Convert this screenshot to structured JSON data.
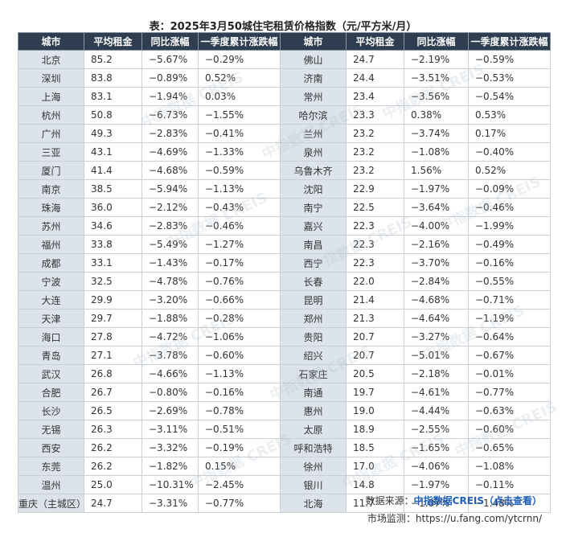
{
  "title": "表：2025年3月50城住宅租赁价格指数（元/平方米/月）",
  "headers": [
    "城市",
    "平均租金",
    "同比涨幅",
    "一季度累计涨跌幅",
    "城市",
    "平均租金",
    "同比涨幅",
    "一季度累计涨跌幅"
  ],
  "rows": [
    [
      [
        "北京",
        "85.2",
        "−5.67%",
        "−0.29%"
      ],
      [
        "佛山",
        "24.7",
        "−2.19%",
        "−0.59%"
      ]
    ],
    [
      [
        "深圳",
        "83.8",
        "−0.89%",
        "0.52%"
      ],
      [
        "济南",
        "24.4",
        "−3.51%",
        "−0.53%"
      ]
    ],
    [
      [
        "上海",
        "83.1",
        "−1.94%",
        "0.03%"
      ],
      [
        "常州",
        "23.4",
        "−3.56%",
        "−0.54%"
      ]
    ],
    [
      [
        "杭州",
        "50.8",
        "−6.73%",
        "−1.55%"
      ],
      [
        "哈尔滨",
        "23.3",
        "0.38%",
        "0.53%"
      ]
    ],
    [
      [
        "广州",
        "49.3",
        "−2.83%",
        "−0.41%"
      ],
      [
        "兰州",
        "23.2",
        "−3.74%",
        "0.17%"
      ]
    ],
    [
      [
        "三亚",
        "43.1",
        "−4.69%",
        "−1.33%"
      ],
      [
        "泉州",
        "23.2",
        "−1.08%",
        "−0.40%"
      ]
    ],
    [
      [
        "厦门",
        "41.4",
        "−4.68%",
        "−0.59%"
      ],
      [
        "乌鲁木齐",
        "23.2",
        "1.56%",
        "0.52%"
      ]
    ],
    [
      [
        "南京",
        "38.5",
        "−5.94%",
        "−1.13%"
      ],
      [
        "沈阳",
        "22.9",
        "−1.97%",
        "−0.09%"
      ]
    ],
    [
      [
        "珠海",
        "36.0",
        "−2.12%",
        "−0.43%"
      ],
      [
        "南宁",
        "22.5",
        "−3.64%",
        "−0.46%"
      ]
    ],
    [
      [
        "苏州",
        "34.6",
        "−2.83%",
        "−0.46%"
      ],
      [
        "嘉兴",
        "22.3",
        "−4.00%",
        "−1.99%"
      ]
    ],
    [
      [
        "福州",
        "33.8",
        "−5.49%",
        "−1.27%"
      ],
      [
        "南昌",
        "22.3",
        "−2.16%",
        "−0.49%"
      ]
    ],
    [
      [
        "成都",
        "33.1",
        "−1.43%",
        "−0.17%"
      ],
      [
        "西宁",
        "22.3",
        "−3.70%",
        "−0.16%"
      ]
    ],
    [
      [
        "宁波",
        "32.5",
        "−4.78%",
        "−0.76%"
      ],
      [
        "长春",
        "22.0",
        "−2.84%",
        "−0.55%"
      ]
    ],
    [
      [
        "大连",
        "29.9",
        "−3.20%",
        "−0.66%"
      ],
      [
        "昆明",
        "21.4",
        "−4.68%",
        "−0.71%"
      ]
    ],
    [
      [
        "天津",
        "29.7",
        "−1.88%",
        "−0.28%"
      ],
      [
        "郑州",
        "21.3",
        "−4.64%",
        "−1.19%"
      ]
    ],
    [
      [
        "海口",
        "27.8",
        "−4.72%",
        "−1.06%"
      ],
      [
        "贵阳",
        "20.7",
        "−3.27%",
        "−0.64%"
      ]
    ],
    [
      [
        "青岛",
        "27.1",
        "−3.78%",
        "−0.60%"
      ],
      [
        "绍兴",
        "20.7",
        "−5.01%",
        "−0.67%"
      ]
    ],
    [
      [
        "武汉",
        "26.8",
        "−4.66%",
        "−1.13%"
      ],
      [
        "石家庄",
        "20.5",
        "−2.18%",
        "−0.01%"
      ]
    ],
    [
      [
        "合肥",
        "26.7",
        "−0.80%",
        "−0.16%"
      ],
      [
        "南通",
        "19.7",
        "−4.61%",
        "−0.77%"
      ]
    ],
    [
      [
        "长沙",
        "26.5",
        "−2.69%",
        "−0.78%"
      ],
      [
        "惠州",
        "19.0",
        "−4.44%",
        "−0.63%"
      ]
    ],
    [
      [
        "无锡",
        "26.3",
        "−3.11%",
        "−0.51%"
      ],
      [
        "太原",
        "18.9",
        "−2.55%",
        "−0.60%"
      ]
    ],
    [
      [
        "西安",
        "26.2",
        "−3.32%",
        "−0.19%"
      ],
      [
        "呼和浩特",
        "18.5",
        "−1.65%",
        "−0.65%"
      ]
    ],
    [
      [
        "东莞",
        "26.2",
        "−1.82%",
        "0.15%"
      ],
      [
        "徐州",
        "17.0",
        "−4.06%",
        "−1.08%"
      ]
    ],
    [
      [
        "温州",
        "25.0",
        "−10.31%",
        "−2.45%"
      ],
      [
        "银川",
        "14.8",
        "−1.97%",
        "−0.11%"
      ]
    ],
    [
      [
        "重庆（主城区）",
        "24.7",
        "−3.31%",
        "−0.77%"
      ],
      [
        "北海",
        "11.7",
        "−1.07%",
        "−1.48%"
      ]
    ]
  ],
  "watermark": "中指数据 CREIS",
  "source_label": "数据来源：",
  "source_link": "中指数据CREIS（点击查看）",
  "monitor": "市场监测：https://u.fang.com/ytcrnn/"
}
